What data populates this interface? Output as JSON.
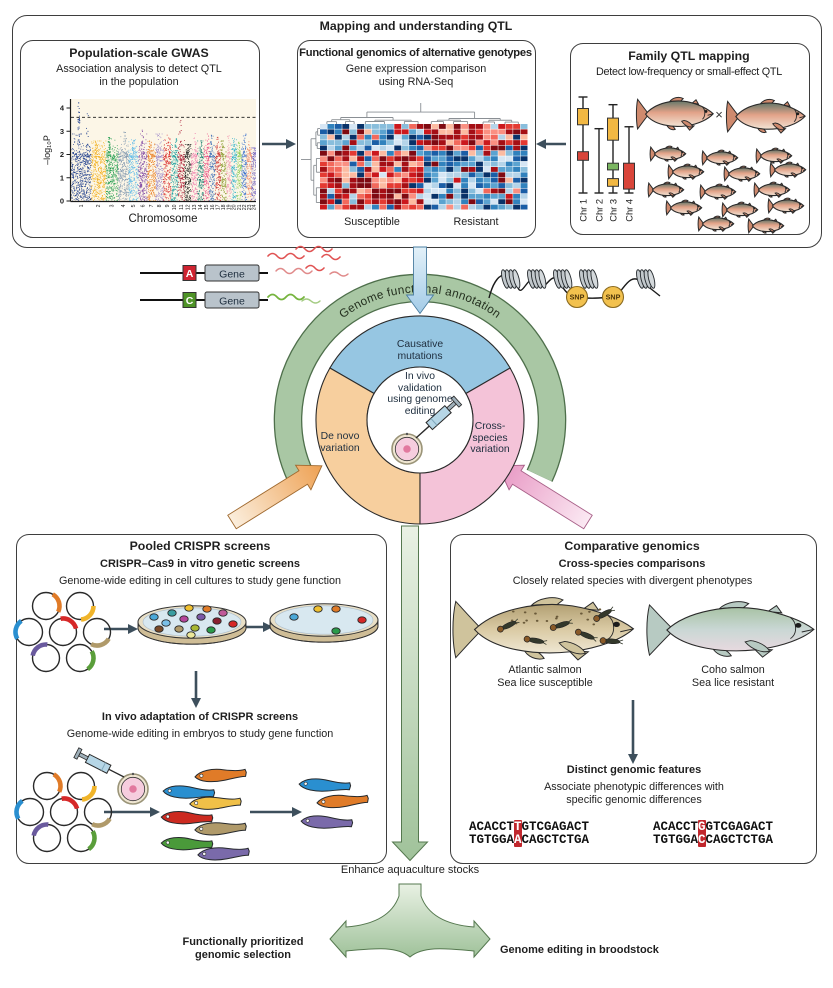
{
  "top": {
    "section_title": "Mapping and understanding QTL",
    "gwas": {
      "title": "Population-scale GWAS",
      "subtitle": "Association analysis to detect QTL\nin the population"
    },
    "functional": {
      "title": "Functional genomics of alternative genotypes",
      "subtitle": "Gene expression comparison\nusing RNA-Seq",
      "col_left": "Susceptible",
      "col_right": "Resistant"
    },
    "family": {
      "title": "Family QTL mapping",
      "subtitle": "Detect low-frequency or small-effect QTL",
      "cross": "×"
    }
  },
  "middle": {
    "arc_label": "Genome functional annotation",
    "allele_a": "A",
    "allele_c": "C",
    "gene_label": "Gene",
    "snp": "SNP",
    "donut": {
      "top": "Causative\nmutations",
      "left": "De novo\nvariation",
      "right": "Cross-\nspecies\nvariation",
      "center": "In vivo\nvalidation\nusing genome\nediting"
    }
  },
  "crispr": {
    "title": "Pooled CRISPR screens",
    "invitro_title": "CRISPR–Cas9 in vitro genetic screens",
    "invitro_sub": "Genome-wide editing in cell cultures to study gene function",
    "invivo_title": "In vivo adaptation of CRISPR screens",
    "invivo_sub": "Genome-wide editing in embryos to study gene function"
  },
  "comparative": {
    "title": "Comparative genomics",
    "sub1": "Cross-species comparisons",
    "sub2": "Closely related species with divergent phenotypes",
    "fish_left_name": "Atlantic salmon",
    "fish_left_trait": "Sea lice susceptible",
    "fish_right_name": "Coho salmon",
    "fish_right_trait": "Sea lice resistant",
    "features_title": "Distinct genomic features",
    "features_sub": "Associate phenotypic differences with\nspecific genomic differences",
    "seq_left": {
      "l1_pre": "ACACCT",
      "l1_hl": "T",
      "l1_post": "GTCGAGACT",
      "l2_pre": "TGTGGA",
      "l2_hl": "A",
      "l2_post": "CAGCTCTGA"
    },
    "seq_right": {
      "l1_pre": "ACACCT",
      "l1_hl": "G",
      "l1_post": "GTCGAGACT",
      "l2_pre": "TGTGGA",
      "l2_hl": "C",
      "l2_post": "CAGCTCTGA"
    }
  },
  "bottom": {
    "enhance": "Enhance aquaculture stocks",
    "left_outcome": "Functionally prioritized\ngenomic selection",
    "right_outcome": "Genome editing in broodstock"
  },
  "chart_data": [
    {
      "type": "scatter",
      "name": "manhattan-plot",
      "title": "Population-scale GWAS",
      "xlabel": "Chromosome",
      "ylabel": "–log₁₀P",
      "ylim": [
        0,
        4.3
      ],
      "yticks": [
        0,
        1,
        2,
        3,
        4
      ],
      "significance_line": 3.6,
      "grid": false,
      "chromosomes": [
        {
          "label": "1",
          "peak": 4.25
        },
        {
          "label": "2",
          "peak": 2.6
        },
        {
          "label": "3",
          "peak": 2.75
        },
        {
          "label": "4",
          "peak": 3.0
        },
        {
          "label": "5",
          "peak": 2.65
        },
        {
          "label": "6",
          "peak": 3.1
        },
        {
          "label": "7",
          "peak": 2.6
        },
        {
          "label": "8",
          "peak": 2.9
        },
        {
          "label": "9",
          "peak": 2.85
        },
        {
          "label": "10",
          "peak": 2.7
        },
        {
          "label": "11",
          "peak": 3.55
        },
        {
          "label": "12",
          "peak": 2.45
        },
        {
          "label": "13",
          "peak": 2.95
        },
        {
          "label": "14",
          "peak": 2.6
        },
        {
          "label": "15",
          "peak": 2.9
        },
        {
          "label": "16",
          "peak": 2.85
        },
        {
          "label": "17",
          "peak": 2.8
        },
        {
          "label": "18",
          "peak": 2.6
        },
        {
          "label": "19",
          "peak": 3.0
        },
        {
          "label": "20",
          "peak": 2.7
        },
        {
          "label": "21",
          "peak": 2.6
        },
        {
          "label": "22",
          "peak": 2.9
        },
        {
          "label": "23",
          "peak": 2.6
        },
        {
          "label": "24",
          "peak": 2.3
        }
      ]
    },
    {
      "type": "heatmap",
      "name": "rnaseq-expression-heatmap",
      "groups": [
        "Susceptible",
        "Resistant"
      ],
      "rows": 16,
      "cols": 28,
      "col_split": 14,
      "row_split": 5,
      "pattern": [
        [
          "low",
          "high"
        ],
        [
          "high",
          "low"
        ]
      ],
      "palette_low": [
        "#083269",
        "#1b5ea6",
        "#3182bd",
        "#5ba3d0",
        "#89bedc",
        "#b5d4e9",
        "#d6e6f4"
      ],
      "palette_high": [
        "#7f0a12",
        "#a50f15",
        "#cb181d",
        "#e43a32",
        "#f2695c",
        "#fa9082",
        "#fcbba1"
      ],
      "dendrograms": [
        "top",
        "left"
      ]
    },
    {
      "type": "boxplot",
      "name": "family-qtl-chromosome-map",
      "categories": [
        "Chr 1",
        "Chr 2",
        "Chr 3",
        "Chr 4"
      ],
      "items": [
        {
          "whisker": [
            0,
            1
          ],
          "boxes": [
            {
              "color": "#f2b843",
              "from": 0.12,
              "to": 0.29
            },
            {
              "color": "#d9453a",
              "from": 0.57,
              "to": 0.66
            }
          ]
        },
        {
          "whisker": [
            0.33,
            1
          ],
          "boxes": []
        },
        {
          "whisker": [
            0.08,
            1
          ],
          "boxes": [
            {
              "color": "#f2b843",
              "from": 0.22,
              "to": 0.45
            },
            {
              "color": "#7bb661",
              "from": 0.69,
              "to": 0.76
            },
            {
              "color": "#f2b843",
              "from": 0.85,
              "to": 0.93
            }
          ]
        },
        {
          "whisker": [
            0.31,
            1
          ],
          "boxes": [
            {
              "color": "#d9453a",
              "from": 0.69,
              "to": 0.96
            }
          ]
        }
      ]
    }
  ],
  "colors": {
    "accent_green": "#a9c7a4",
    "green_edge": "#55784f",
    "donut_blue": "#96c6e2",
    "donut_orange": "#f7cf9e",
    "donut_pink": "#f4c3d8",
    "arrow_dark": "#3d4f5c",
    "diag_orange": "#eea153",
    "diag_pink": "#e795c2",
    "seq_highlight": "#c1272d",
    "snp_fill": "#f2c14e",
    "allele_a_fill": "#cf2330",
    "allele_c_fill": "#4f9427",
    "gene_box_fill": "#b9c3cb",
    "manhattan_bg": "#fcf6e7",
    "manhattan_palette": [
      "#22418f",
      "#f2b01e",
      "#1b9a4a",
      "#7d95ad",
      "#58b8e8",
      "#7b3fa0",
      "#e87c1e",
      "#9b85c8",
      "#d92b2b",
      "#1a9e9e",
      "#a8152e",
      "#141414",
      "#ef7fae",
      "#0e7a6e",
      "#e8447c",
      "#3a6bb5",
      "#cc3333",
      "#8a9a2e",
      "#f2a0b4",
      "#28b0c9",
      "#8fce5a",
      "#2b66cc",
      "#ef8a6a",
      "#7060c0"
    ],
    "plasmid_colors": [
      "#e07b28",
      "#f0b42a",
      "#2a8fd0",
      "#d62828",
      "#b09a6a",
      "#6a5a9e",
      "#5a9e3a"
    ],
    "larvae_colors": [
      "#e07b28",
      "#2a8fd0",
      "#f0c048",
      "#cc2a20",
      "#b09a6a",
      "#4a9a3a",
      "#7a6aaa"
    ],
    "survivor_larvae_colors": [
      "#2a8fd0",
      "#e07b28",
      "#7a6aaa"
    ]
  }
}
